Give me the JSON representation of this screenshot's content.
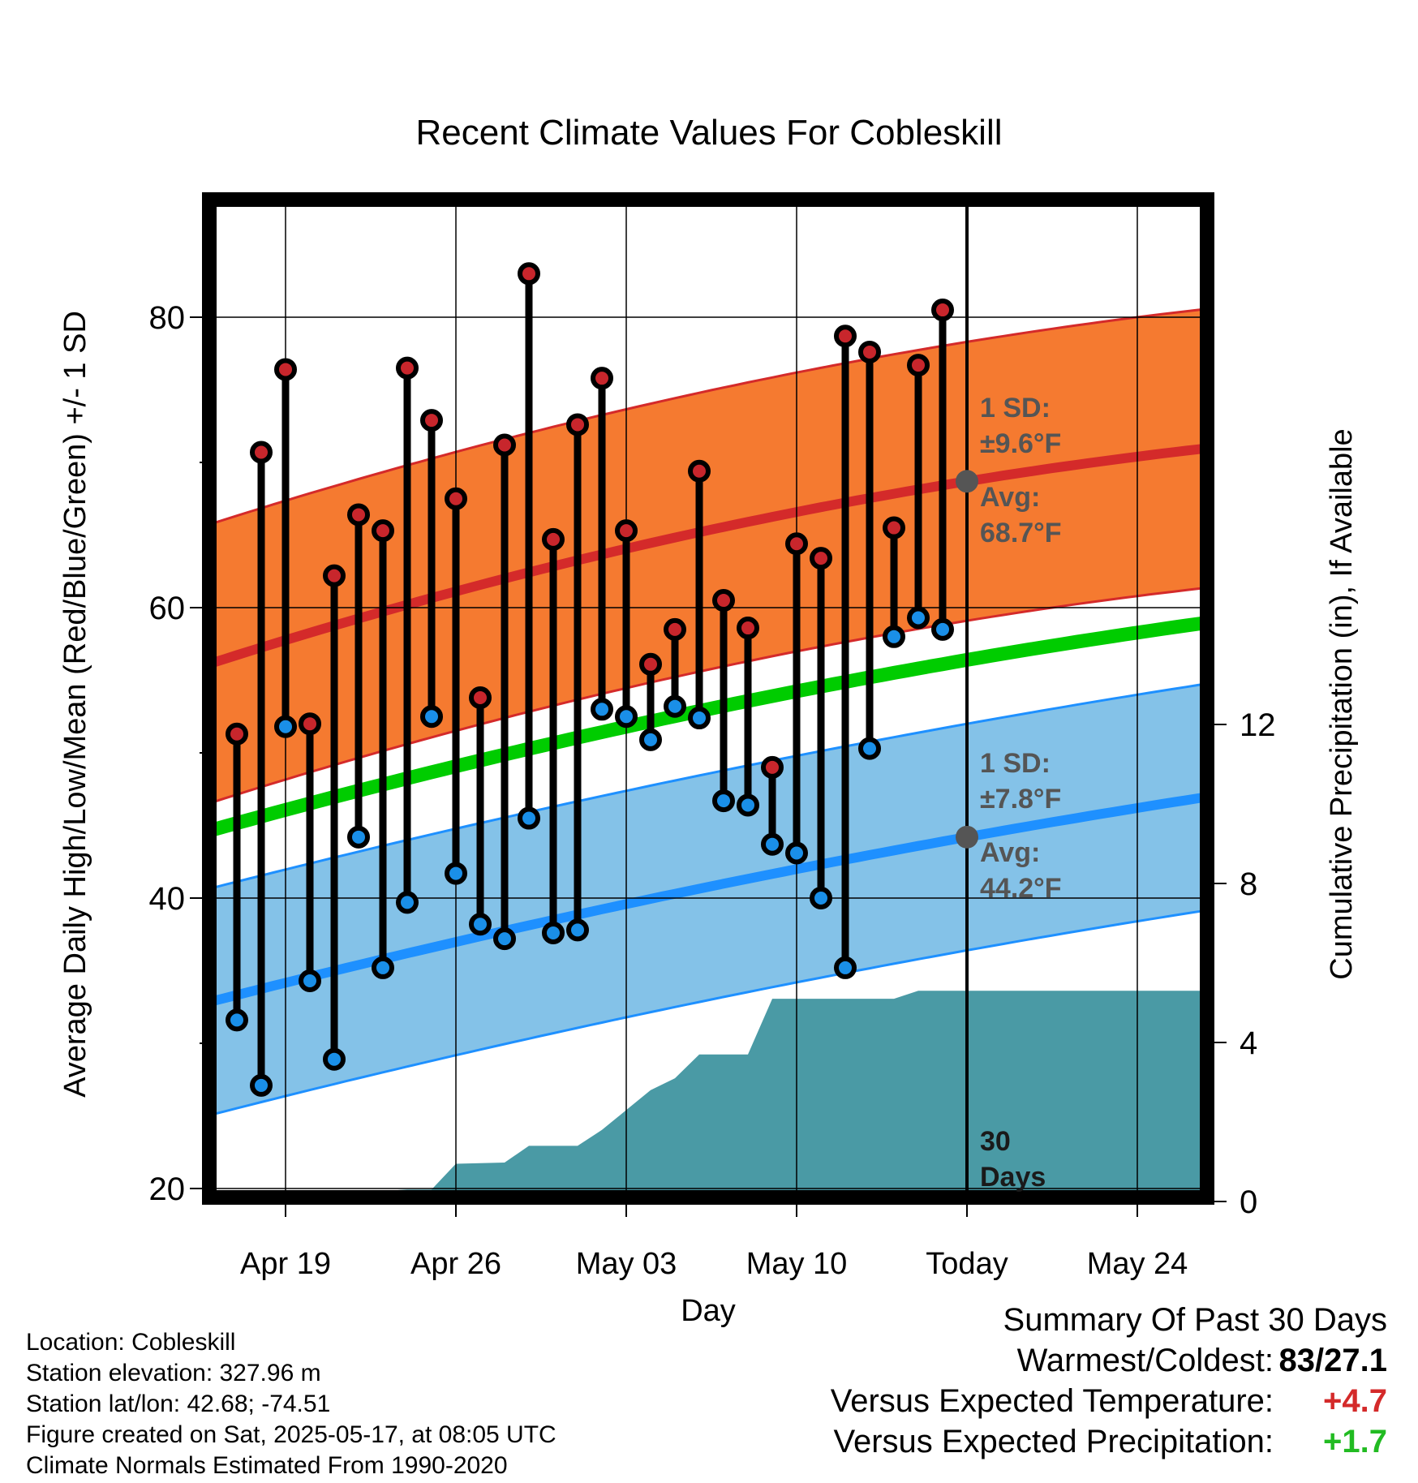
{
  "chart_data": {
    "type": "line",
    "title": "Recent Climate Values For Cobleskill",
    "xlabel": "Day",
    "ylabel": "Average Daily High/Low/Mean (Red/Blue/Green) +/- 1 SD",
    "y2label": "Cumulative Precipitation (in), If Available",
    "ylim": [
      20,
      88
    ],
    "y_ticks": [
      20,
      40,
      60,
      80
    ],
    "y2lim": [
      0,
      30
    ],
    "y2_ticks": [
      0,
      4,
      8,
      12
    ],
    "x_tick_labels": [
      "Apr 19",
      "Apr 26",
      "May 03",
      "May 10",
      "Today",
      "May 24"
    ],
    "x_range": [
      "2025-04-16",
      "2025-05-27"
    ],
    "today": "2025-05-17",
    "observed": {
      "dates": [
        "2025-04-17",
        "2025-04-18",
        "2025-04-19",
        "2025-04-20",
        "2025-04-21",
        "2025-04-22",
        "2025-04-23",
        "2025-04-24",
        "2025-04-25",
        "2025-04-26",
        "2025-04-27",
        "2025-04-28",
        "2025-04-29",
        "2025-04-30",
        "2025-05-01",
        "2025-05-02",
        "2025-05-03",
        "2025-05-04",
        "2025-05-05",
        "2025-05-06",
        "2025-05-07",
        "2025-05-08",
        "2025-05-09",
        "2025-05-10",
        "2025-05-11",
        "2025-05-12",
        "2025-05-13",
        "2025-05-14",
        "2025-05-15",
        "2025-05-16"
      ],
      "high": [
        51.3,
        70.7,
        76.4,
        52.0,
        62.2,
        66.4,
        65.3,
        76.5,
        72.9,
        67.5,
        53.8,
        71.2,
        83.0,
        64.7,
        72.6,
        75.8,
        65.3,
        56.1,
        58.5,
        69.4,
        60.5,
        58.6,
        49.0,
        64.4,
        63.4,
        78.7,
        77.6,
        65.5,
        76.7,
        80.5
      ],
      "low": [
        31.6,
        27.1,
        51.8,
        34.3,
        28.9,
        44.2,
        35.2,
        39.7,
        52.5,
        41.7,
        38.2,
        37.2,
        45.5,
        37.6,
        37.8,
        53.0,
        52.5,
        50.9,
        53.2,
        52.4,
        46.7,
        46.4,
        43.7,
        43.1,
        40.0,
        35.2,
        50.3,
        58.0,
        59.3,
        58.5
      ]
    },
    "normals": {
      "dates": [
        "2025-04-16",
        "2025-05-17",
        "2025-05-27"
      ],
      "avg_high": [
        56.2,
        68.7,
        71.0
      ],
      "avg_low": [
        32.9,
        44.2,
        47.0
      ],
      "avg_mean": [
        44.7,
        56.4,
        59.0
      ],
      "sd_high": 9.6,
      "sd_low": 7.8
    },
    "precipitation": {
      "x": [
        "2025-04-16",
        "2025-04-24",
        "2025-04-25",
        "2025-04-26",
        "2025-04-28",
        "2025-04-29",
        "2025-05-01",
        "2025-05-02",
        "2025-05-03",
        "2025-05-04",
        "2025-05-05",
        "2025-05-06",
        "2025-05-08",
        "2025-05-09",
        "2025-05-14",
        "2025-05-15",
        "2025-05-27"
      ],
      "values": [
        0.0,
        0.3,
        0.3,
        0.95,
        0.98,
        1.4,
        1.4,
        1.8,
        2.3,
        2.8,
        3.1,
        3.7,
        3.7,
        5.1,
        5.1,
        5.3,
        5.3
      ]
    },
    "annotations": {
      "high_sd": "1 SD:",
      "high_sd_val": "±9.6°F",
      "high_avg": "Avg:",
      "high_avg_val": "68.7°F",
      "low_sd": "1 SD:",
      "low_sd_val": "±7.8°F",
      "low_avg": "Avg:",
      "low_avg_val": "44.2°F",
      "period_num": "30",
      "period_unit": "Days"
    },
    "colors": {
      "high_band": "#f57a30",
      "high_line": "#d42a2a",
      "low_band": "#84c2e8",
      "low_line": "#1e90ff",
      "mean_line": "#00cc00",
      "precip": "#4a9aa5",
      "high_marker": "#c8262c",
      "low_marker": "#1a8fe8",
      "annotation": "#555555"
    }
  },
  "info": {
    "location": "Location: Cobleskill",
    "elevation": "Station elevation: 327.96 m",
    "latlon": "Station lat/lon: 42.68; -74.51",
    "created": "Figure created on Sat, 2025-05-17, at 08:05 UTC",
    "normals": "Climate Normals Estimated From 1990-2020"
  },
  "summary": {
    "heading": "Summary Of Past 30 Days",
    "warm_label": "Warmest/Coldest:",
    "warm_value": "83/27.1",
    "temp_label": "Versus Expected Temperature:",
    "temp_value": "+4.7",
    "temp_color": "#d42a2a",
    "precip_label": "Versus Expected Precipitation:",
    "precip_value": "+1.7",
    "precip_color": "#22bb22"
  }
}
